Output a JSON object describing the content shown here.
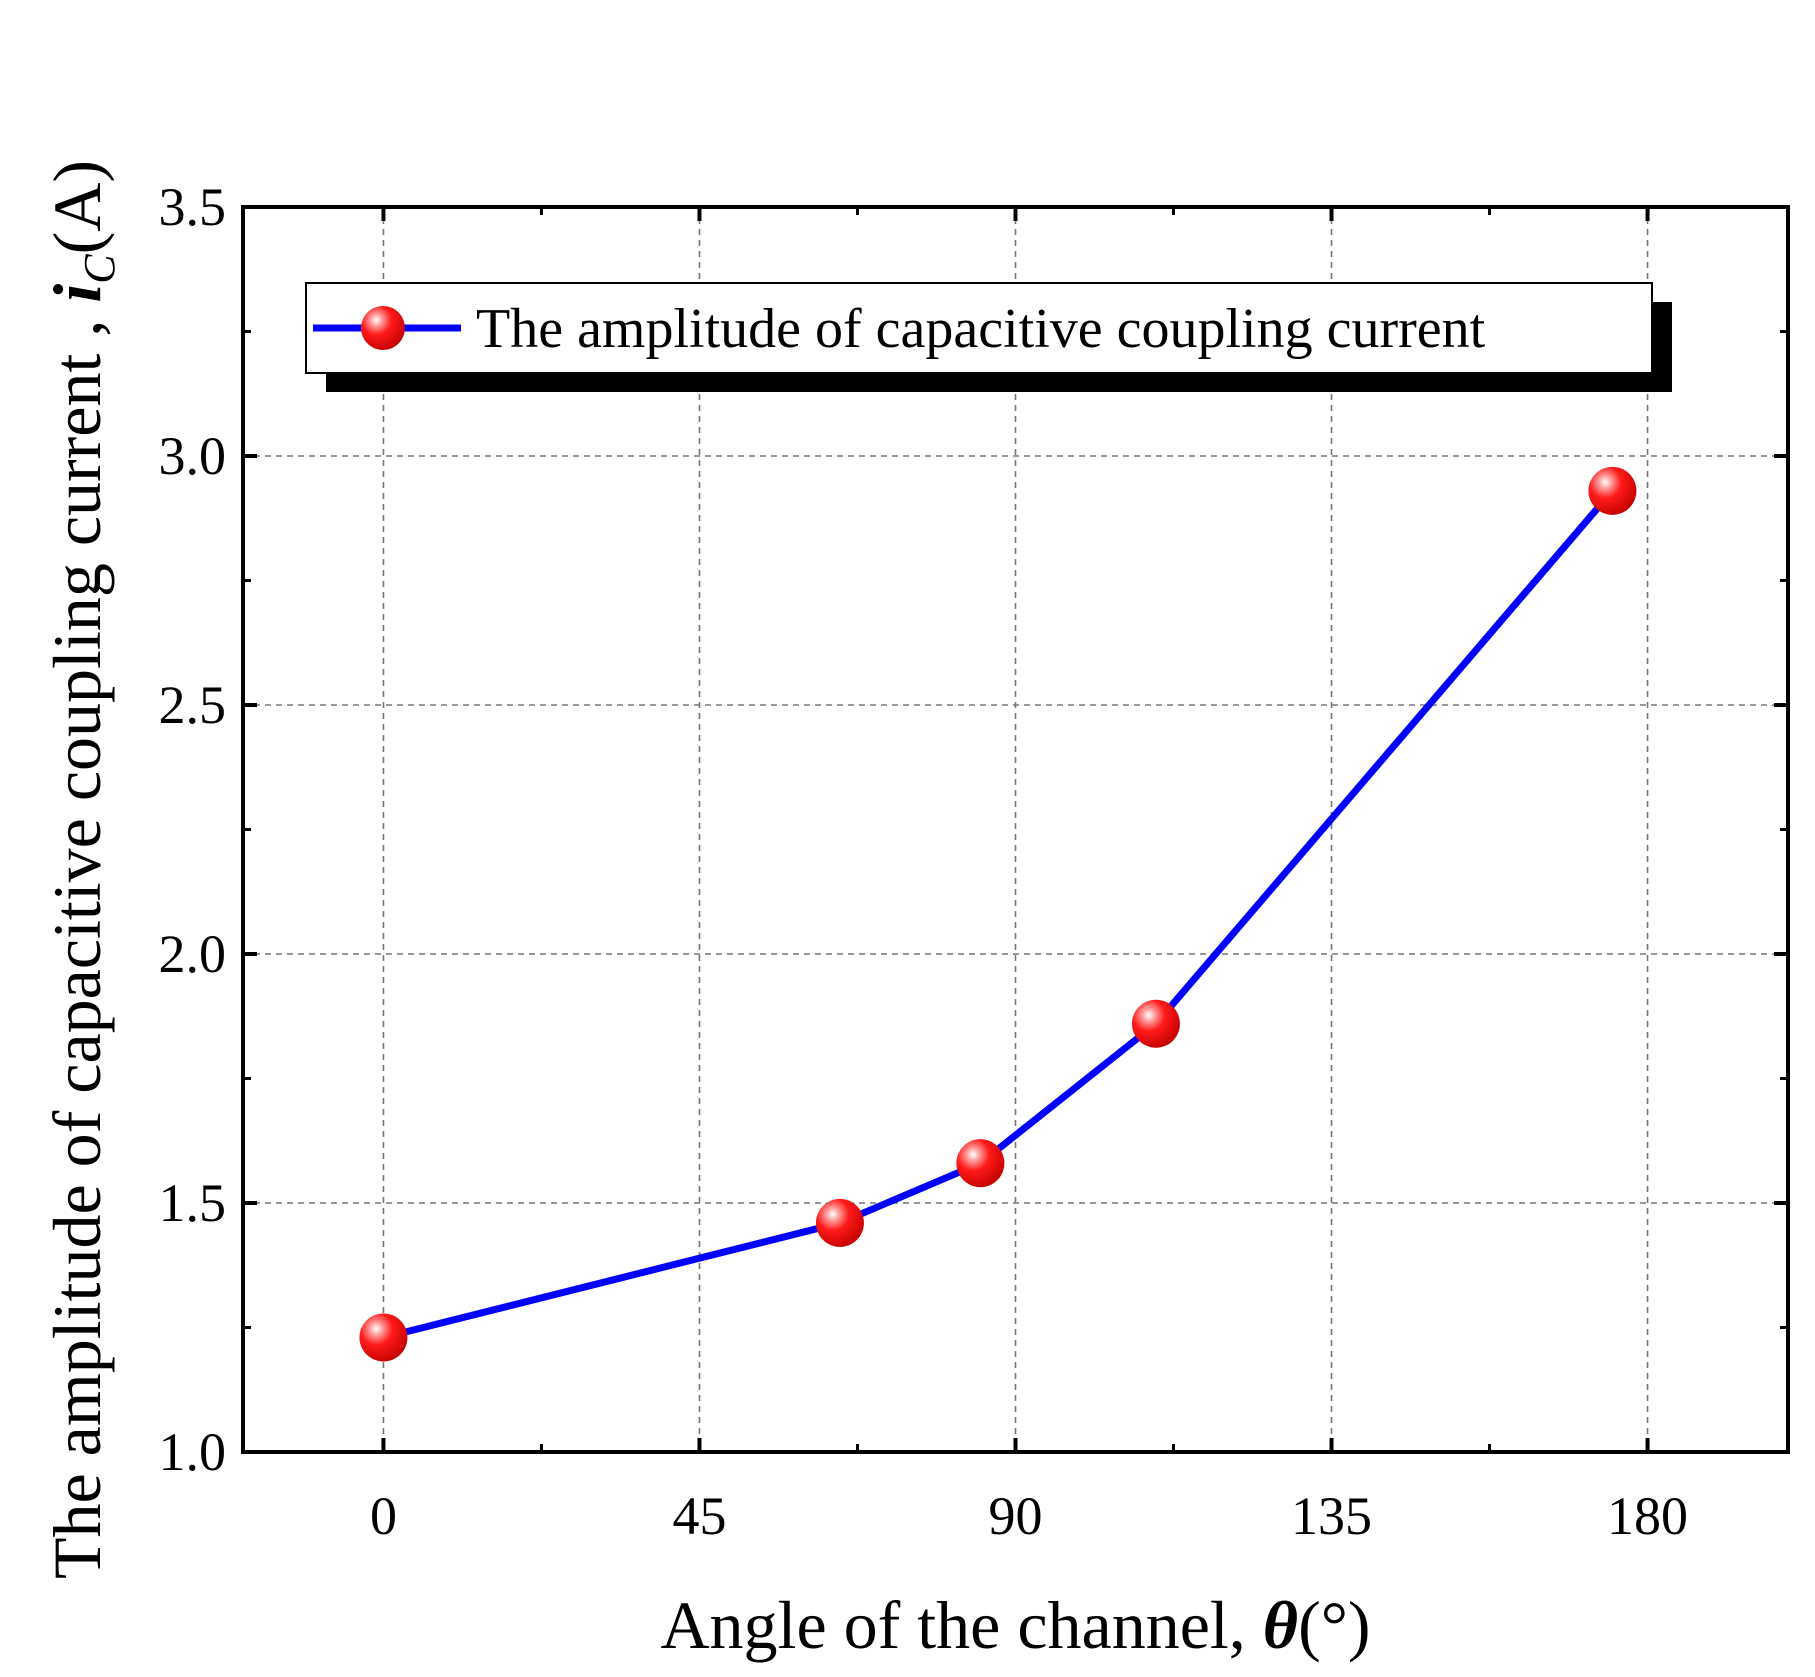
{
  "chart_data": {
    "type": "line",
    "xlabel": "Angle of the channel, ",
    "xlabel_symbol": "θ",
    "xlabel_unit": "(°)",
    "ylabel": "The amplitude of capacitive coupling current , ",
    "ylabel_symbol": "i",
    "ylabel_subscript": "C",
    "ylabel_unit": "(A)",
    "xlim": [
      -20,
      200
    ],
    "ylim": [
      1.0,
      3.5
    ],
    "x_ticks": [
      0,
      45,
      90,
      135,
      180
    ],
    "x_tick_labels": [
      "0",
      "45",
      "90",
      "135",
      "180"
    ],
    "y_ticks": [
      1.0,
      1.5,
      2.0,
      2.5,
      3.0,
      3.5
    ],
    "y_tick_labels": [
      "1.0",
      "1.5",
      "2.0",
      "2.5",
      "3.0",
      "3.5"
    ],
    "grid": true,
    "legend_position": "top",
    "series": [
      {
        "name": "The amplitude of capacitive coupling current",
        "line_color": "#0000ff",
        "marker_color": "#ff0000",
        "x": [
          0,
          65,
          85,
          110,
          175
        ],
        "y": [
          1.23,
          1.46,
          1.58,
          1.86,
          2.93
        ]
      }
    ]
  }
}
